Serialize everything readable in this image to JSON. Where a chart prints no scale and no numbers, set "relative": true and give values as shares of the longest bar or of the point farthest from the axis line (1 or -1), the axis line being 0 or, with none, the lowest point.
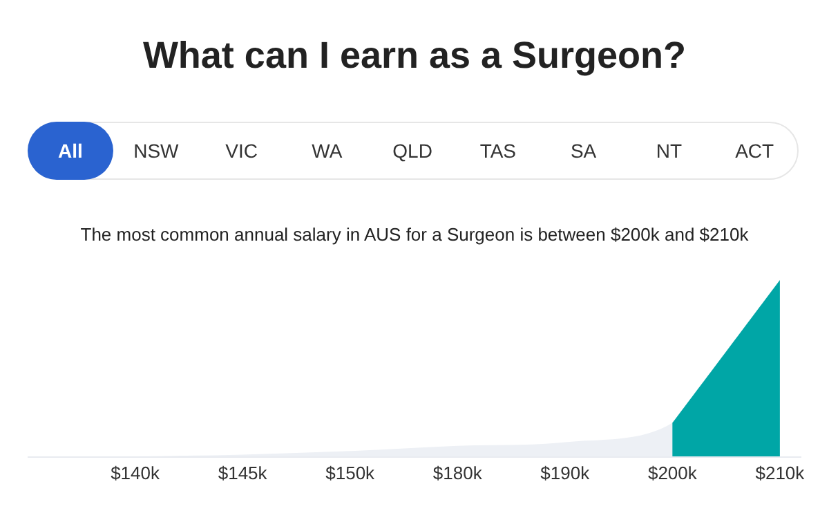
{
  "chart_data": {
    "type": "area",
    "title": "What can I earn as a Surgeon?",
    "subtitle": "The most common annual salary in AUS for a Surgeon is between $200k and $210k",
    "annotations": [
      "All",
      "NSW",
      "VIC",
      "WA",
      "QLD",
      "TAS",
      "SA",
      "NT",
      "ACT"
    ],
    "categories": [
      "$140k",
      "$145k",
      "$150k",
      "$180k",
      "$190k",
      "$200k",
      "$210k"
    ],
    "relative": true,
    "grid": false,
    "series": [
      {
        "color": "#edf0f5",
        "values": [
          0,
          0.01,
          0.03,
          0.06,
          0.08,
          0.19,
          1
        ]
      },
      {
        "color": "#00a6a6",
        "values": [
          null,
          null,
          null,
          null,
          null,
          0.19,
          1
        ]
      }
    ]
  }
}
